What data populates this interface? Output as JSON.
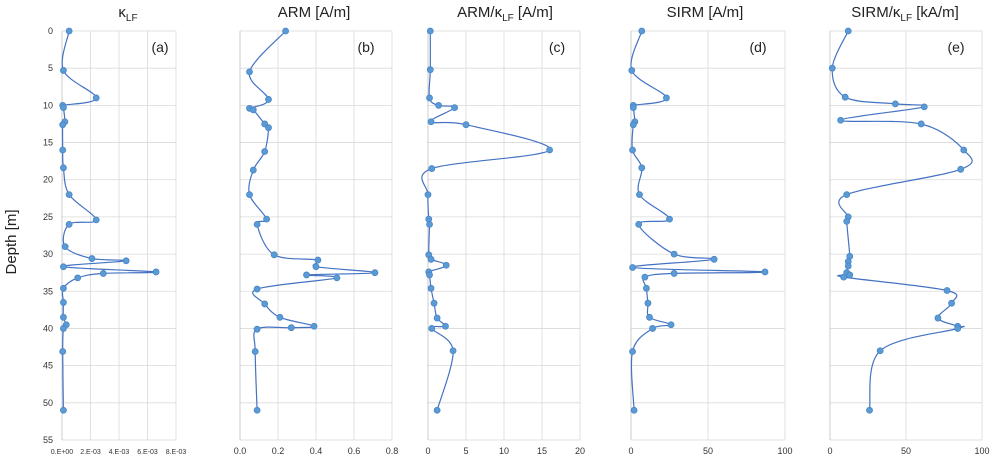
{
  "figure": {
    "ylabel": "Depth [m]",
    "series_color": "#4472c4",
    "marker_color": "#5b9bd5"
  },
  "chart_data": [
    {
      "type": "line",
      "panel_label": "(a)",
      "title_main": "κ",
      "title_sub": "LF",
      "title_after": "",
      "xlim": [
        0,
        0.008
      ],
      "xticks": [
        0,
        0.002,
        0.004,
        0.006,
        0.008
      ],
      "xtick_labels": [
        "0.E+00",
        "2.E-03",
        "4.E-03",
        "6.E-03",
        "8.E-03"
      ],
      "ylim": [
        0,
        55
      ],
      "yticks": [
        0,
        5,
        10,
        15,
        20,
        25,
        30,
        35,
        40,
        45,
        50,
        55
      ],
      "points": [
        [
          0.0005,
          0
        ],
        [
          0.0001,
          5.3
        ],
        [
          0.0024,
          9
        ],
        [
          5e-05,
          10
        ],
        [
          0.0001,
          10.3
        ],
        [
          0.0002,
          12.2
        ],
        [
          5e-05,
          12.6
        ],
        [
          5e-05,
          16
        ],
        [
          0.0001,
          18.4
        ],
        [
          0.0005,
          22
        ],
        [
          0.0024,
          25.4
        ],
        [
          0.0005,
          26
        ],
        [
          0.00022,
          29
        ],
        [
          0.0021,
          30.6
        ],
        [
          0.0045,
          30.9
        ],
        [
          0.0001,
          31.7
        ],
        [
          0.0066,
          32.4
        ],
        [
          0.0029,
          32.6
        ],
        [
          0.0011,
          33.2
        ],
        [
          0.0001,
          34.6
        ],
        [
          0.0001,
          36.5
        ],
        [
          0.0001,
          38.5
        ],
        [
          0.0003,
          39.5
        ],
        [
          0.0001,
          40
        ],
        [
          5e-05,
          43.1
        ],
        [
          0.0001,
          51
        ]
      ]
    },
    {
      "type": "line",
      "panel_label": "(b)",
      "title_main": "ARM [A/m]",
      "title_sub": "",
      "title_after": "",
      "xlim": [
        0,
        0.8
      ],
      "xticks": [
        0,
        0.2,
        0.4,
        0.6,
        0.8
      ],
      "xtick_labels": [
        "0.0",
        "0.2",
        "0.4",
        "0.6",
        "0.8"
      ],
      "ylim": [
        0,
        55
      ],
      "yticks": [
        0,
        5,
        10,
        15,
        20,
        25,
        30,
        35,
        40,
        45,
        50,
        55
      ],
      "points": [
        [
          0.24,
          0
        ],
        [
          0.05,
          5.5
        ],
        [
          0.15,
          9.2
        ],
        [
          0.05,
          10.4
        ],
        [
          0.07,
          10.6
        ],
        [
          0.13,
          12.5
        ],
        [
          0.15,
          13
        ],
        [
          0.13,
          16.2
        ],
        [
          0.07,
          18.7
        ],
        [
          0.05,
          22
        ],
        [
          0.14,
          25.3
        ],
        [
          0.09,
          26
        ],
        [
          0.18,
          30.1
        ],
        [
          0.41,
          30.8
        ],
        [
          0.4,
          31.7
        ],
        [
          0.71,
          32.5
        ],
        [
          0.35,
          32.8
        ],
        [
          0.51,
          33.2
        ],
        [
          0.09,
          34.7
        ],
        [
          0.13,
          36.7
        ],
        [
          0.21,
          38.5
        ],
        [
          0.39,
          39.7
        ],
        [
          0.27,
          39.9
        ],
        [
          0.09,
          40.1
        ],
        [
          0.08,
          43.1
        ],
        [
          0.09,
          51
        ]
      ]
    },
    {
      "type": "line",
      "panel_label": "(c)",
      "title_main": "ARM/κ",
      "title_sub": "LF",
      "title_after": " [A/m]",
      "xlim": [
        0,
        20
      ],
      "xticks": [
        0,
        5,
        10,
        15,
        20
      ],
      "xtick_labels": [
        "0",
        "5",
        "10",
        "15",
        "20"
      ],
      "ylim": [
        0,
        55
      ],
      "yticks": [
        0,
        5,
        10,
        15,
        20,
        25,
        30,
        35,
        40,
        45,
        50,
        55
      ],
      "points": [
        [
          0.3,
          0
        ],
        [
          0.3,
          5.2
        ],
        [
          0.2,
          9
        ],
        [
          1.4,
          10
        ],
        [
          3.5,
          10.3
        ],
        [
          0.4,
          12.2
        ],
        [
          5,
          12.6
        ],
        [
          16,
          16
        ],
        [
          0.5,
          18.5
        ],
        [
          0,
          22
        ],
        [
          0.1,
          25.3
        ],
        [
          0.2,
          26
        ],
        [
          0.1,
          30.1
        ],
        [
          0.4,
          30.7
        ],
        [
          2.4,
          31.5
        ],
        [
          0.1,
          32.4
        ],
        [
          0.2,
          32.8
        ],
        [
          0.4,
          34.6
        ],
        [
          0.8,
          36.6
        ],
        [
          1.2,
          38.6
        ],
        [
          2.3,
          39.7
        ],
        [
          0.5,
          40
        ],
        [
          3.3,
          43
        ],
        [
          1.2,
          51
        ]
      ]
    },
    {
      "type": "line",
      "panel_label": "(d)",
      "title_main": "SIRM [A/m]",
      "title_sub": "",
      "title_after": "",
      "xlim": [
        0,
        100
      ],
      "xticks": [
        0,
        50,
        100
      ],
      "xtick_labels": [
        "0",
        "50",
        "100"
      ],
      "ylim": [
        0,
        55
      ],
      "yticks": [
        0,
        5,
        10,
        15,
        20,
        25,
        30,
        35,
        40,
        45,
        50,
        55
      ],
      "points": [
        [
          7,
          0
        ],
        [
          0.5,
          5.3
        ],
        [
          23,
          9
        ],
        [
          1.5,
          10
        ],
        [
          1.5,
          10.3
        ],
        [
          2.5,
          12.2
        ],
        [
          1.5,
          12.6
        ],
        [
          1,
          16
        ],
        [
          7,
          18.4
        ],
        [
          5.5,
          22
        ],
        [
          25,
          25.3
        ],
        [
          5,
          26
        ],
        [
          28,
          30
        ],
        [
          54,
          30.7
        ],
        [
          1,
          31.8
        ],
        [
          87,
          32.4
        ],
        [
          28,
          32.6
        ],
        [
          9,
          33.1
        ],
        [
          10,
          34.6
        ],
        [
          11,
          36.6
        ],
        [
          12,
          38.5
        ],
        [
          26,
          39.5
        ],
        [
          14,
          40
        ],
        [
          1,
          43.1
        ],
        [
          2,
          51
        ]
      ]
    },
    {
      "type": "line",
      "panel_label": "(e)",
      "title_main": "SIRM/κ",
      "title_sub": "LF",
      "title_after": " [kA/m]",
      "xlim": [
        0,
        100
      ],
      "xticks": [
        0,
        50,
        100
      ],
      "xtick_labels": [
        "0",
        "50",
        "100"
      ],
      "ylim": [
        0,
        55
      ],
      "yticks": [
        0,
        5,
        10,
        15,
        20,
        25,
        30,
        35,
        40,
        45,
        50,
        55
      ],
      "points": [
        [
          12,
          0
        ],
        [
          1.5,
          5
        ],
        [
          10,
          8.9
        ],
        [
          43,
          9.8
        ],
        [
          62,
          10.2
        ],
        [
          7,
          12
        ],
        [
          60,
          12.5
        ],
        [
          88,
          16
        ],
        [
          86,
          18.6
        ],
        [
          11,
          22
        ],
        [
          12,
          25
        ],
        [
          11,
          25.6
        ],
        [
          13,
          30.3
        ],
        [
          12,
          31
        ],
        [
          12,
          31.6
        ],
        [
          11,
          32.5
        ],
        [
          13,
          32.8
        ],
        [
          9,
          33.1
        ],
        [
          77,
          34.9
        ],
        [
          80,
          36.6
        ],
        [
          71,
          38.6
        ],
        [
          84,
          39.7
        ],
        [
          84,
          40
        ],
        [
          33,
          43
        ],
        [
          26,
          51
        ]
      ]
    }
  ]
}
